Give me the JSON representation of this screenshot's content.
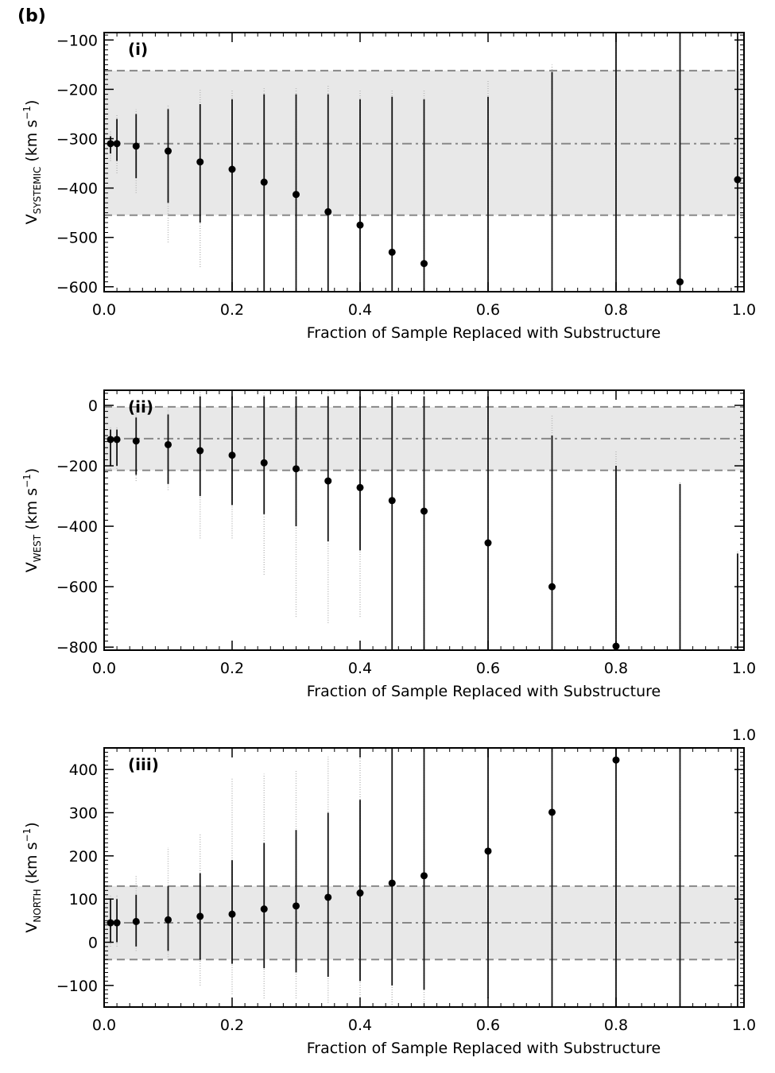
{
  "figure_label": "(b)",
  "chart_data": [
    {
      "type": "scatter",
      "panel": "(i)",
      "xlabel": "Fraction of Sample Replaced with Substructure",
      "ylabel_main": "V",
      "ylabel_sub": "SYSTEMIC",
      "ylabel_unit": "(km s",
      "ylabel_exp": "−1",
      "ylabel_close": ")",
      "xlim": [
        0.0,
        1.0
      ],
      "ylim": [
        -610,
        -85
      ],
      "xticks": [
        0.0,
        0.2,
        0.4,
        0.6,
        0.8,
        1.0
      ],
      "xtick_labels": [
        "0.0",
        "0.2",
        "0.4",
        "0.6",
        "0.8",
        "1.0"
      ],
      "yticks": [
        -600,
        -500,
        -400,
        -300,
        -200,
        -100
      ],
      "ytick_labels": [
        "−600",
        "−500",
        "−400",
        "−300",
        "−200",
        "−100"
      ],
      "band": {
        "lower": -455,
        "upper": -162,
        "center": -310,
        "color": "#e8e8e8"
      },
      "points": [
        {
          "x": 0.01,
          "y": -310,
          "lo": -330,
          "hi": -295,
          "glo": -345,
          "ghi": -285
        },
        {
          "x": 0.02,
          "y": -310,
          "lo": -345,
          "hi": -260,
          "glo": -370,
          "ghi": -250
        },
        {
          "x": 0.05,
          "y": -315,
          "lo": -380,
          "hi": -250,
          "glo": -410,
          "ghi": -240
        },
        {
          "x": 0.1,
          "y": -325,
          "lo": -430,
          "hi": -240,
          "glo": -510,
          "ghi": -230
        },
        {
          "x": 0.15,
          "y": -347,
          "lo": -470,
          "hi": -230,
          "glo": -560,
          "ghi": -200
        },
        {
          "x": 0.2,
          "y": -362,
          "lo": -610,
          "hi": -220,
          "glo": -610,
          "ghi": -200
        },
        {
          "x": 0.25,
          "y": -388,
          "lo": -610,
          "hi": -210,
          "glo": -610,
          "ghi": -195
        },
        {
          "x": 0.3,
          "y": -413,
          "lo": -610,
          "hi": -210,
          "glo": -610,
          "ghi": -195
        },
        {
          "x": 0.35,
          "y": -448,
          "lo": -610,
          "hi": -210,
          "glo": -610,
          "ghi": -190
        },
        {
          "x": 0.4,
          "y": -475,
          "lo": -610,
          "hi": -220,
          "glo": -610,
          "ghi": -200
        },
        {
          "x": 0.45,
          "y": -530,
          "lo": -610,
          "hi": -215,
          "glo": -610,
          "ghi": -200
        },
        {
          "x": 0.5,
          "y": -553,
          "lo": -610,
          "hi": -220,
          "glo": -610,
          "ghi": -200
        },
        {
          "x": 0.6,
          "y": null,
          "lo": -610,
          "hi": -215,
          "glo": -610,
          "ghi": -180
        },
        {
          "x": 0.7,
          "y": null,
          "lo": -610,
          "hi": -165,
          "glo": -610,
          "ghi": -150
        },
        {
          "x": 0.8,
          "y": null,
          "lo": -610,
          "hi": -85,
          "glo": -610,
          "ghi": -85
        },
        {
          "x": 0.9,
          "y": -590,
          "lo": -610,
          "hi": -85,
          "glo": -610,
          "ghi": -85
        },
        {
          "x": 0.99,
          "y": -383,
          "lo": -610,
          "hi": -85,
          "glo": -610,
          "ghi": -85
        }
      ]
    },
    {
      "type": "scatter",
      "panel": "(ii)",
      "xlabel": "Fraction of Sample Replaced with Substructure",
      "ylabel_main": "V",
      "ylabel_sub": "WEST",
      "ylabel_unit": "(km s",
      "ylabel_exp": "−1",
      "ylabel_close": ")",
      "xlim": [
        0.0,
        1.0
      ],
      "ylim": [
        -810,
        50
      ],
      "xticks": [
        0.0,
        0.2,
        0.4,
        0.6,
        0.8,
        1.0
      ],
      "xtick_labels": [
        "0.0",
        "0.2",
        "0.4",
        "0.6",
        "0.8",
        "1.0"
      ],
      "yticks": [
        -800,
        -600,
        -400,
        -200,
        0
      ],
      "ytick_labels": [
        "−800",
        "−600",
        "−400",
        "−200",
        "0"
      ],
      "band": {
        "lower": -215,
        "upper": -5,
        "center": -110,
        "color": "#e8e8e8"
      },
      "points": [
        {
          "x": 0.01,
          "y": -113,
          "lo": -200,
          "hi": -80,
          "glo": -210,
          "ghi": -70
        },
        {
          "x": 0.02,
          "y": -113,
          "lo": -200,
          "hi": -80,
          "glo": -210,
          "ghi": -70
        },
        {
          "x": 0.05,
          "y": -118,
          "lo": -230,
          "hi": -40,
          "glo": -250,
          "ghi": -20
        },
        {
          "x": 0.1,
          "y": -130,
          "lo": -260,
          "hi": -30,
          "glo": -280,
          "ghi": -10
        },
        {
          "x": 0.15,
          "y": -150,
          "lo": -300,
          "hi": 30,
          "glo": -440,
          "ghi": 50
        },
        {
          "x": 0.2,
          "y": -165,
          "lo": -330,
          "hi": 30,
          "glo": -440,
          "ghi": 50
        },
        {
          "x": 0.25,
          "y": -190,
          "lo": -360,
          "hi": 30,
          "glo": -560,
          "ghi": 50
        },
        {
          "x": 0.3,
          "y": -210,
          "lo": -400,
          "hi": 30,
          "glo": -700,
          "ghi": 50
        },
        {
          "x": 0.35,
          "y": -250,
          "lo": -450,
          "hi": 30,
          "glo": -720,
          "ghi": 50
        },
        {
          "x": 0.4,
          "y": -272,
          "lo": -480,
          "hi": 30,
          "glo": -700,
          "ghi": 50
        },
        {
          "x": 0.45,
          "y": -315,
          "lo": -810,
          "hi": 30,
          "glo": -810,
          "ghi": 50
        },
        {
          "x": 0.5,
          "y": -350,
          "lo": -810,
          "hi": 30,
          "glo": -810,
          "ghi": 50
        },
        {
          "x": 0.6,
          "y": -455,
          "lo": -810,
          "hi": 30,
          "glo": -810,
          "ghi": 50
        },
        {
          "x": 0.7,
          "y": -600,
          "lo": -810,
          "hi": -100,
          "glo": -810,
          "ghi": -30
        },
        {
          "x": 0.8,
          "y": -797,
          "lo": -810,
          "hi": -200,
          "glo": -810,
          "ghi": -150
        },
        {
          "x": 0.9,
          "y": null,
          "lo": -810,
          "hi": -260,
          "glo": -810,
          "ghi": -250
        },
        {
          "x": 0.99,
          "y": null,
          "lo": -810,
          "hi": -490,
          "glo": -810,
          "ghi": -480
        }
      ]
    },
    {
      "type": "scatter",
      "panel": "(iii)",
      "xlabel": "Fraction of Sample Replaced with Substructure",
      "ylabel_main": "V",
      "ylabel_sub": "NORTH",
      "ylabel_unit": "(km s",
      "ylabel_exp": "−1",
      "ylabel_close": ")",
      "top_label": "1.0",
      "xlim": [
        0.0,
        1.0
      ],
      "ylim": [
        -150,
        450
      ],
      "xticks": [
        0.0,
        0.2,
        0.4,
        0.6,
        0.8,
        1.0
      ],
      "xtick_labels": [
        "0.0",
        "0.2",
        "0.4",
        "0.6",
        "0.8",
        "1.0"
      ],
      "yticks": [
        -100,
        0,
        100,
        200,
        300,
        400
      ],
      "ytick_labels": [
        "−100",
        "0",
        "100",
        "200",
        "300",
        "400"
      ],
      "band": {
        "lower": -40,
        "upper": 130,
        "center": 45,
        "color": "#e8e8e8"
      },
      "points": [
        {
          "x": 0.01,
          "y": 45,
          "lo": 0,
          "hi": 100,
          "glo": -10,
          "ghi": 110
        },
        {
          "x": 0.02,
          "y": 45,
          "lo": 0,
          "hi": 100,
          "glo": -10,
          "ghi": 110
        },
        {
          "x": 0.05,
          "y": 48,
          "lo": -10,
          "hi": 110,
          "glo": -20,
          "ghi": 155
        },
        {
          "x": 0.1,
          "y": 52,
          "lo": -20,
          "hi": 130,
          "glo": -40,
          "ghi": 220
        },
        {
          "x": 0.15,
          "y": 60,
          "lo": -40,
          "hi": 160,
          "glo": -100,
          "ghi": 250
        },
        {
          "x": 0.2,
          "y": 65,
          "lo": -50,
          "hi": 190,
          "glo": -120,
          "ghi": 380
        },
        {
          "x": 0.25,
          "y": 77,
          "lo": -60,
          "hi": 230,
          "glo": -130,
          "ghi": 390
        },
        {
          "x": 0.3,
          "y": 84,
          "lo": -70,
          "hi": 260,
          "glo": -130,
          "ghi": 400
        },
        {
          "x": 0.35,
          "y": 104,
          "lo": -80,
          "hi": 300,
          "glo": -140,
          "ghi": 430
        },
        {
          "x": 0.4,
          "y": 114,
          "lo": -90,
          "hi": 330,
          "glo": -150,
          "ghi": 450
        },
        {
          "x": 0.45,
          "y": 137,
          "lo": -100,
          "hi": 450,
          "glo": -150,
          "ghi": 450
        },
        {
          "x": 0.5,
          "y": 154,
          "lo": -110,
          "hi": 450,
          "glo": -150,
          "ghi": 450
        },
        {
          "x": 0.6,
          "y": 211,
          "lo": -130,
          "hi": 450,
          "glo": -150,
          "ghi": 450
        },
        {
          "x": 0.7,
          "y": 301,
          "lo": -150,
          "hi": 450,
          "glo": -150,
          "ghi": 450
        },
        {
          "x": 0.8,
          "y": 422,
          "lo": -150,
          "hi": 450,
          "glo": -150,
          "ghi": 450
        },
        {
          "x": 0.9,
          "y": null,
          "lo": -150,
          "hi": 450,
          "glo": -150,
          "ghi": 450
        },
        {
          "x": 0.99,
          "y": null,
          "lo": -150,
          "hi": 450,
          "glo": -150,
          "ghi": 450
        }
      ]
    }
  ]
}
